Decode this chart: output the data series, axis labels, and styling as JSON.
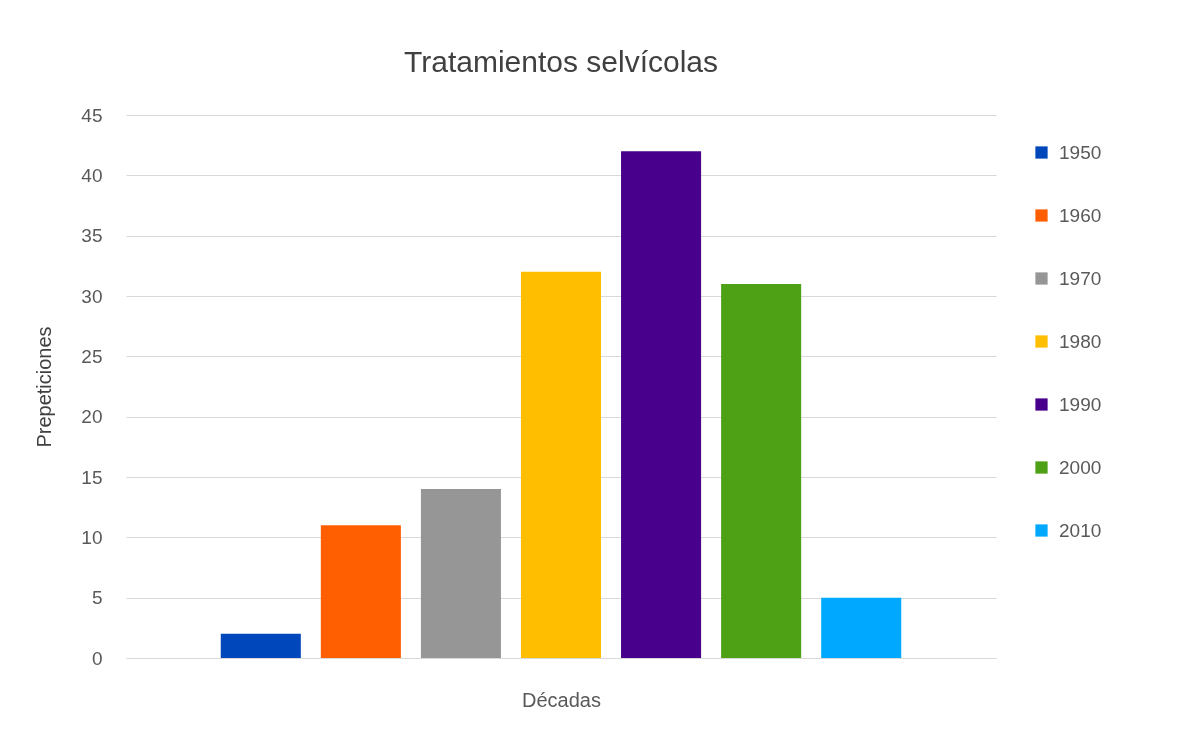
{
  "chart_data": {
    "type": "bar",
    "title": "Tratamientos selvícolas",
    "xlabel": "Décadas",
    "ylabel": "Prepeticiones",
    "categories": [
      null
    ],
    "series": [
      {
        "name": "1950",
        "color": "#0047bb",
        "values": [
          2
        ]
      },
      {
        "name": "1960",
        "color": "#ff5f00",
        "values": [
          11
        ]
      },
      {
        "name": "1970",
        "color": "#969696",
        "values": [
          14
        ]
      },
      {
        "name": "1980",
        "color": "#ffbf00",
        "values": [
          32
        ]
      },
      {
        "name": "1990",
        "color": "#48008c",
        "values": [
          42
        ]
      },
      {
        "name": "2000",
        "color": "#4ea014",
        "values": [
          31
        ]
      },
      {
        "name": "2010",
        "color": "#00a9ff",
        "values": [
          5
        ]
      }
    ],
    "ylim": [
      0,
      45
    ],
    "yticks": [
      0,
      5,
      10,
      15,
      20,
      25,
      30,
      35,
      40,
      45
    ],
    "grid": "y",
    "legend": "right",
    "tick_labels": "y"
  }
}
